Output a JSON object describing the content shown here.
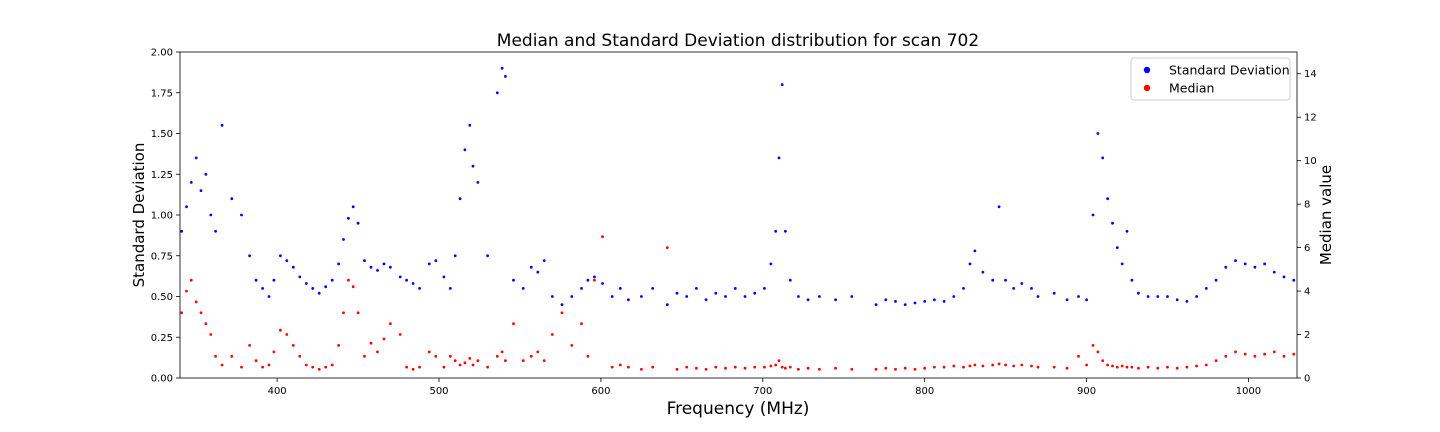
{
  "chart_data": {
    "type": "scatter",
    "title": "Median and Standard Deviation distribution for scan 702",
    "xlabel": "Frequency (MHz)",
    "ylabel": "Standard Deviation",
    "ylabel_right": "Median value",
    "xlim": [
      340,
      1030
    ],
    "ylim": [
      0,
      2.0
    ],
    "ylim_right": [
      0,
      15
    ],
    "x_ticks": [
      400,
      500,
      600,
      700,
      800,
      900,
      1000
    ],
    "y_ticks": [
      0.0,
      0.25,
      0.5,
      0.75,
      1.0,
      1.25,
      1.5,
      1.75,
      2.0
    ],
    "y_tick_labels": [
      "0.00",
      "0.25",
      "0.50",
      "0.75",
      "1.00",
      "1.25",
      "1.50",
      "1.75",
      "2.00"
    ],
    "y_right_ticks": [
      0,
      2,
      4,
      6,
      8,
      10,
      12,
      14
    ],
    "grid": false,
    "legend_position": "top-right",
    "colors": {
      "std": "#0000ff",
      "median": "#ff0000"
    },
    "series": [
      {
        "name": "Standard Deviation",
        "axis": "left",
        "color": "#0000ff",
        "points": [
          [
            341,
            0.9
          ],
          [
            344,
            1.05
          ],
          [
            347,
            1.2
          ],
          [
            350,
            1.35
          ],
          [
            353,
            1.15
          ],
          [
            356,
            1.25
          ],
          [
            359,
            1.0
          ],
          [
            362,
            0.9
          ],
          [
            366,
            1.55
          ],
          [
            372,
            1.1
          ],
          [
            378,
            1.0
          ],
          [
            383,
            0.75
          ],
          [
            387,
            0.6
          ],
          [
            391,
            0.55
          ],
          [
            395,
            0.5
          ],
          [
            398,
            0.6
          ],
          [
            402,
            0.75
          ],
          [
            406,
            0.72
          ],
          [
            410,
            0.68
          ],
          [
            414,
            0.62
          ],
          [
            418,
            0.58
          ],
          [
            422,
            0.55
          ],
          [
            426,
            0.52
          ],
          [
            430,
            0.56
          ],
          [
            434,
            0.6
          ],
          [
            438,
            0.7
          ],
          [
            441,
            0.85
          ],
          [
            444,
            0.98
          ],
          [
            447,
            1.05
          ],
          [
            450,
            0.95
          ],
          [
            454,
            0.72
          ],
          [
            458,
            0.68
          ],
          [
            462,
            0.66
          ],
          [
            466,
            0.7
          ],
          [
            470,
            0.68
          ],
          [
            476,
            0.62
          ],
          [
            480,
            0.6
          ],
          [
            484,
            0.58
          ],
          [
            488,
            0.55
          ],
          [
            494,
            0.7
          ],
          [
            498,
            0.72
          ],
          [
            503,
            0.62
          ],
          [
            507,
            0.55
          ],
          [
            510,
            0.75
          ],
          [
            513,
            1.1
          ],
          [
            516,
            1.4
          ],
          [
            519,
            1.55
          ],
          [
            521,
            1.3
          ],
          [
            524,
            1.2
          ],
          [
            530,
            0.75
          ],
          [
            536,
            1.75
          ],
          [
            539,
            1.9
          ],
          [
            541,
            1.85
          ],
          [
            546,
            0.6
          ],
          [
            552,
            0.55
          ],
          [
            557,
            0.68
          ],
          [
            561,
            0.65
          ],
          [
            565,
            0.72
          ],
          [
            570,
            0.5
          ],
          [
            576,
            0.45
          ],
          [
            582,
            0.5
          ],
          [
            588,
            0.55
          ],
          [
            592,
            0.6
          ],
          [
            596,
            0.62
          ],
          [
            601,
            0.58
          ],
          [
            607,
            0.5
          ],
          [
            612,
            0.55
          ],
          [
            617,
            0.48
          ],
          [
            625,
            0.5
          ],
          [
            632,
            0.55
          ],
          [
            641,
            0.45
          ],
          [
            647,
            0.52
          ],
          [
            653,
            0.5
          ],
          [
            659,
            0.55
          ],
          [
            665,
            0.48
          ],
          [
            671,
            0.52
          ],
          [
            677,
            0.5
          ],
          [
            683,
            0.55
          ],
          [
            689,
            0.5
          ],
          [
            695,
            0.52
          ],
          [
            701,
            0.55
          ],
          [
            705,
            0.7
          ],
          [
            708,
            0.9
          ],
          [
            710,
            1.35
          ],
          [
            712,
            1.8
          ],
          [
            714,
            0.9
          ],
          [
            717,
            0.6
          ],
          [
            722,
            0.5
          ],
          [
            728,
            0.48
          ],
          [
            735,
            0.5
          ],
          [
            745,
            0.48
          ],
          [
            755,
            0.5
          ],
          [
            770,
            0.45
          ],
          [
            776,
            0.48
          ],
          [
            782,
            0.47
          ],
          [
            788,
            0.45
          ],
          [
            794,
            0.46
          ],
          [
            800,
            0.47
          ],
          [
            806,
            0.48
          ],
          [
            812,
            0.47
          ],
          [
            818,
            0.5
          ],
          [
            824,
            0.55
          ],
          [
            828,
            0.7
          ],
          [
            831,
            0.78
          ],
          [
            836,
            0.65
          ],
          [
            842,
            0.6
          ],
          [
            846,
            1.05
          ],
          [
            850,
            0.6
          ],
          [
            855,
            0.55
          ],
          [
            860,
            0.58
          ],
          [
            866,
            0.55
          ],
          [
            870,
            0.5
          ],
          [
            880,
            0.52
          ],
          [
            888,
            0.48
          ],
          [
            895,
            0.5
          ],
          [
            900,
            0.48
          ],
          [
            904,
            1.0
          ],
          [
            907,
            1.5
          ],
          [
            910,
            1.35
          ],
          [
            913,
            1.1
          ],
          [
            916,
            0.95
          ],
          [
            919,
            0.8
          ],
          [
            922,
            0.7
          ],
          [
            925,
            0.9
          ],
          [
            928,
            0.6
          ],
          [
            932,
            0.52
          ],
          [
            938,
            0.5
          ],
          [
            944,
            0.5
          ],
          [
            950,
            0.5
          ],
          [
            956,
            0.48
          ],
          [
            962,
            0.47
          ],
          [
            968,
            0.5
          ],
          [
            974,
            0.55
          ],
          [
            980,
            0.6
          ],
          [
            986,
            0.68
          ],
          [
            992,
            0.72
          ],
          [
            998,
            0.7
          ],
          [
            1004,
            0.68
          ],
          [
            1010,
            0.7
          ],
          [
            1016,
            0.65
          ],
          [
            1022,
            0.62
          ],
          [
            1028,
            0.6
          ]
        ]
      },
      {
        "name": "Median",
        "axis": "right",
        "color": "#ff0000",
        "points": [
          [
            341,
            3.0
          ],
          [
            344,
            4.0
          ],
          [
            347,
            4.5
          ],
          [
            350,
            3.5
          ],
          [
            353,
            3.0
          ],
          [
            356,
            2.5
          ],
          [
            359,
            2.0
          ],
          [
            362,
            1.0
          ],
          [
            366,
            0.6
          ],
          [
            372,
            1.0
          ],
          [
            378,
            0.5
          ],
          [
            383,
            1.5
          ],
          [
            387,
            0.8
          ],
          [
            391,
            0.5
          ],
          [
            395,
            0.6
          ],
          [
            398,
            1.2
          ],
          [
            402,
            2.2
          ],
          [
            406,
            2.0
          ],
          [
            410,
            1.5
          ],
          [
            414,
            1.0
          ],
          [
            418,
            0.6
          ],
          [
            422,
            0.5
          ],
          [
            426,
            0.4
          ],
          [
            430,
            0.5
          ],
          [
            434,
            0.6
          ],
          [
            438,
            1.5
          ],
          [
            441,
            3.0
          ],
          [
            444,
            4.5
          ],
          [
            447,
            4.2
          ],
          [
            450,
            3.0
          ],
          [
            454,
            1.0
          ],
          [
            458,
            1.6
          ],
          [
            462,
            1.2
          ],
          [
            466,
            1.8
          ],
          [
            470,
            2.5
          ],
          [
            476,
            2.0
          ],
          [
            480,
            0.5
          ],
          [
            484,
            0.4
          ],
          [
            488,
            0.5
          ],
          [
            494,
            1.2
          ],
          [
            498,
            1.0
          ],
          [
            503,
            0.5
          ],
          [
            507,
            1.0
          ],
          [
            510,
            0.8
          ],
          [
            513,
            0.6
          ],
          [
            516,
            0.7
          ],
          [
            519,
            0.9
          ],
          [
            521,
            0.6
          ],
          [
            524,
            0.8
          ],
          [
            530,
            0.5
          ],
          [
            536,
            1.0
          ],
          [
            539,
            1.2
          ],
          [
            541,
            0.8
          ],
          [
            546,
            2.5
          ],
          [
            552,
            0.8
          ],
          [
            557,
            1.0
          ],
          [
            561,
            1.2
          ],
          [
            565,
            0.8
          ],
          [
            570,
            2.0
          ],
          [
            576,
            3.0
          ],
          [
            582,
            1.5
          ],
          [
            588,
            2.5
          ],
          [
            592,
            1.0
          ],
          [
            596,
            4.5
          ],
          [
            601,
            6.5
          ],
          [
            607,
            0.5
          ],
          [
            612,
            0.6
          ],
          [
            617,
            0.5
          ],
          [
            625,
            0.4
          ],
          [
            632,
            0.5
          ],
          [
            641,
            6.0
          ],
          [
            647,
            0.4
          ],
          [
            653,
            0.5
          ],
          [
            659,
            0.45
          ],
          [
            665,
            0.4
          ],
          [
            671,
            0.5
          ],
          [
            677,
            0.45
          ],
          [
            683,
            0.5
          ],
          [
            689,
            0.45
          ],
          [
            695,
            0.5
          ],
          [
            701,
            0.5
          ],
          [
            705,
            0.55
          ],
          [
            708,
            0.6
          ],
          [
            710,
            0.8
          ],
          [
            712,
            0.5
          ],
          [
            714,
            0.45
          ],
          [
            717,
            0.5
          ],
          [
            722,
            0.4
          ],
          [
            728,
            0.45
          ],
          [
            735,
            0.4
          ],
          [
            745,
            0.45
          ],
          [
            755,
            0.4
          ],
          [
            770,
            0.4
          ],
          [
            776,
            0.45
          ],
          [
            782,
            0.4
          ],
          [
            788,
            0.45
          ],
          [
            794,
            0.4
          ],
          [
            800,
            0.45
          ],
          [
            806,
            0.5
          ],
          [
            812,
            0.5
          ],
          [
            818,
            0.55
          ],
          [
            824,
            0.5
          ],
          [
            828,
            0.55
          ],
          [
            831,
            0.6
          ],
          [
            836,
            0.55
          ],
          [
            842,
            0.6
          ],
          [
            846,
            0.65
          ],
          [
            850,
            0.6
          ],
          [
            855,
            0.55
          ],
          [
            860,
            0.6
          ],
          [
            866,
            0.55
          ],
          [
            870,
            0.5
          ],
          [
            880,
            0.5
          ],
          [
            888,
            0.45
          ],
          [
            895,
            1.0
          ],
          [
            900,
            0.6
          ],
          [
            904,
            1.5
          ],
          [
            907,
            1.2
          ],
          [
            910,
            0.8
          ],
          [
            913,
            0.6
          ],
          [
            916,
            0.55
          ],
          [
            919,
            0.5
          ],
          [
            922,
            0.55
          ],
          [
            925,
            0.5
          ],
          [
            928,
            0.5
          ],
          [
            932,
            0.45
          ],
          [
            938,
            0.5
          ],
          [
            944,
            0.45
          ],
          [
            950,
            0.5
          ],
          [
            956,
            0.45
          ],
          [
            962,
            0.5
          ],
          [
            968,
            0.55
          ],
          [
            974,
            0.6
          ],
          [
            980,
            0.8
          ],
          [
            986,
            1.0
          ],
          [
            992,
            1.2
          ],
          [
            998,
            1.1
          ],
          [
            1004,
            1.0
          ],
          [
            1010,
            1.1
          ],
          [
            1016,
            1.2
          ],
          [
            1022,
            1.0
          ],
          [
            1028,
            1.1
          ]
        ]
      }
    ]
  }
}
